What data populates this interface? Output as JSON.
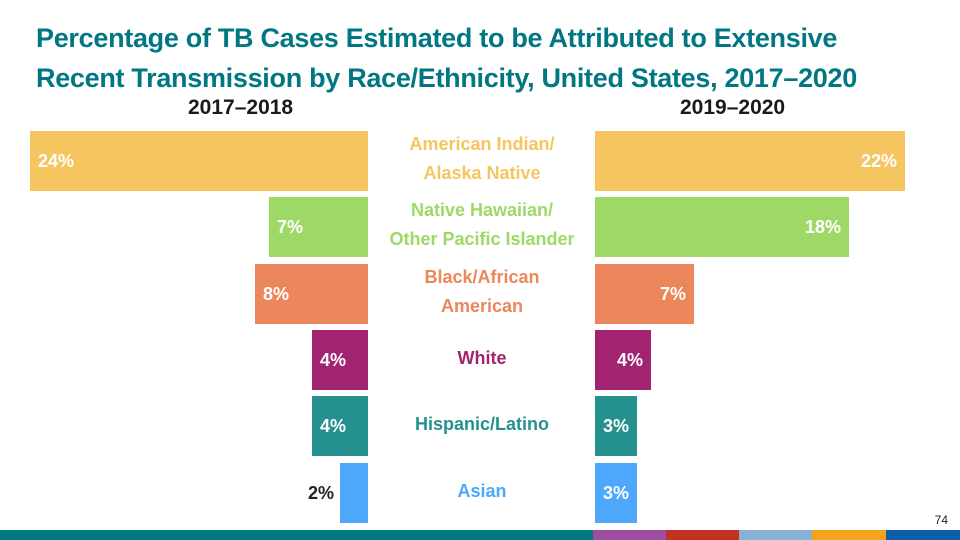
{
  "slide": {
    "title_line1": "Percentage of TB Cases Estimated to be Attributed to Extensive",
    "title_line2": "Recent Transmission by Race/Ethnicity, United States, 2017–2020",
    "page_number": "74",
    "title_color": "#007782"
  },
  "chart_data": {
    "type": "bar",
    "orientation": "horizontal-butterfly",
    "title": "Percentage of TB Cases Estimated to be Attributed to Extensive Recent Transmission by Race/Ethnicity, United States, 2017–2020",
    "xlabel": "",
    "ylabel": "",
    "unit": "%",
    "grid": false,
    "categories": [
      "American Indian/ Alaska Native",
      "Native Hawaiian/ Other Pacific Islander",
      "Black/African American",
      "White",
      "Hispanic/Latino",
      "Asian"
    ],
    "category_lines": [
      [
        "American Indian/",
        "Alaska Native"
      ],
      [
        "Native Hawaiian/",
        "Other Pacific Islander"
      ],
      [
        "Black/African",
        "American"
      ],
      [
        "White"
      ],
      [
        "Hispanic/Latino"
      ],
      [
        "Asian"
      ]
    ],
    "colors": [
      "#F5C55F",
      "#9ED867",
      "#EB875B",
      "#A22370",
      "#25918F",
      "#4DA8FC"
    ],
    "series": [
      {
        "name": "2017–2018",
        "side": "left",
        "values": [
          24,
          7,
          8,
          4,
          4,
          2
        ],
        "labels": [
          "24%",
          "7%",
          "8%",
          "4%",
          "4%",
          "2%"
        ]
      },
      {
        "name": "2019–2020",
        "side": "right",
        "values": [
          22,
          18,
          7,
          4,
          3,
          3
        ],
        "labels": [
          "22%",
          "18%",
          "7%",
          "4%",
          "3%",
          "3%"
        ]
      }
    ]
  },
  "footer": {
    "colors": [
      "#007782",
      "#9B4F9E",
      "#C13221",
      "#86B2D8",
      "#F5A21D",
      "#0A5FA7"
    ]
  }
}
